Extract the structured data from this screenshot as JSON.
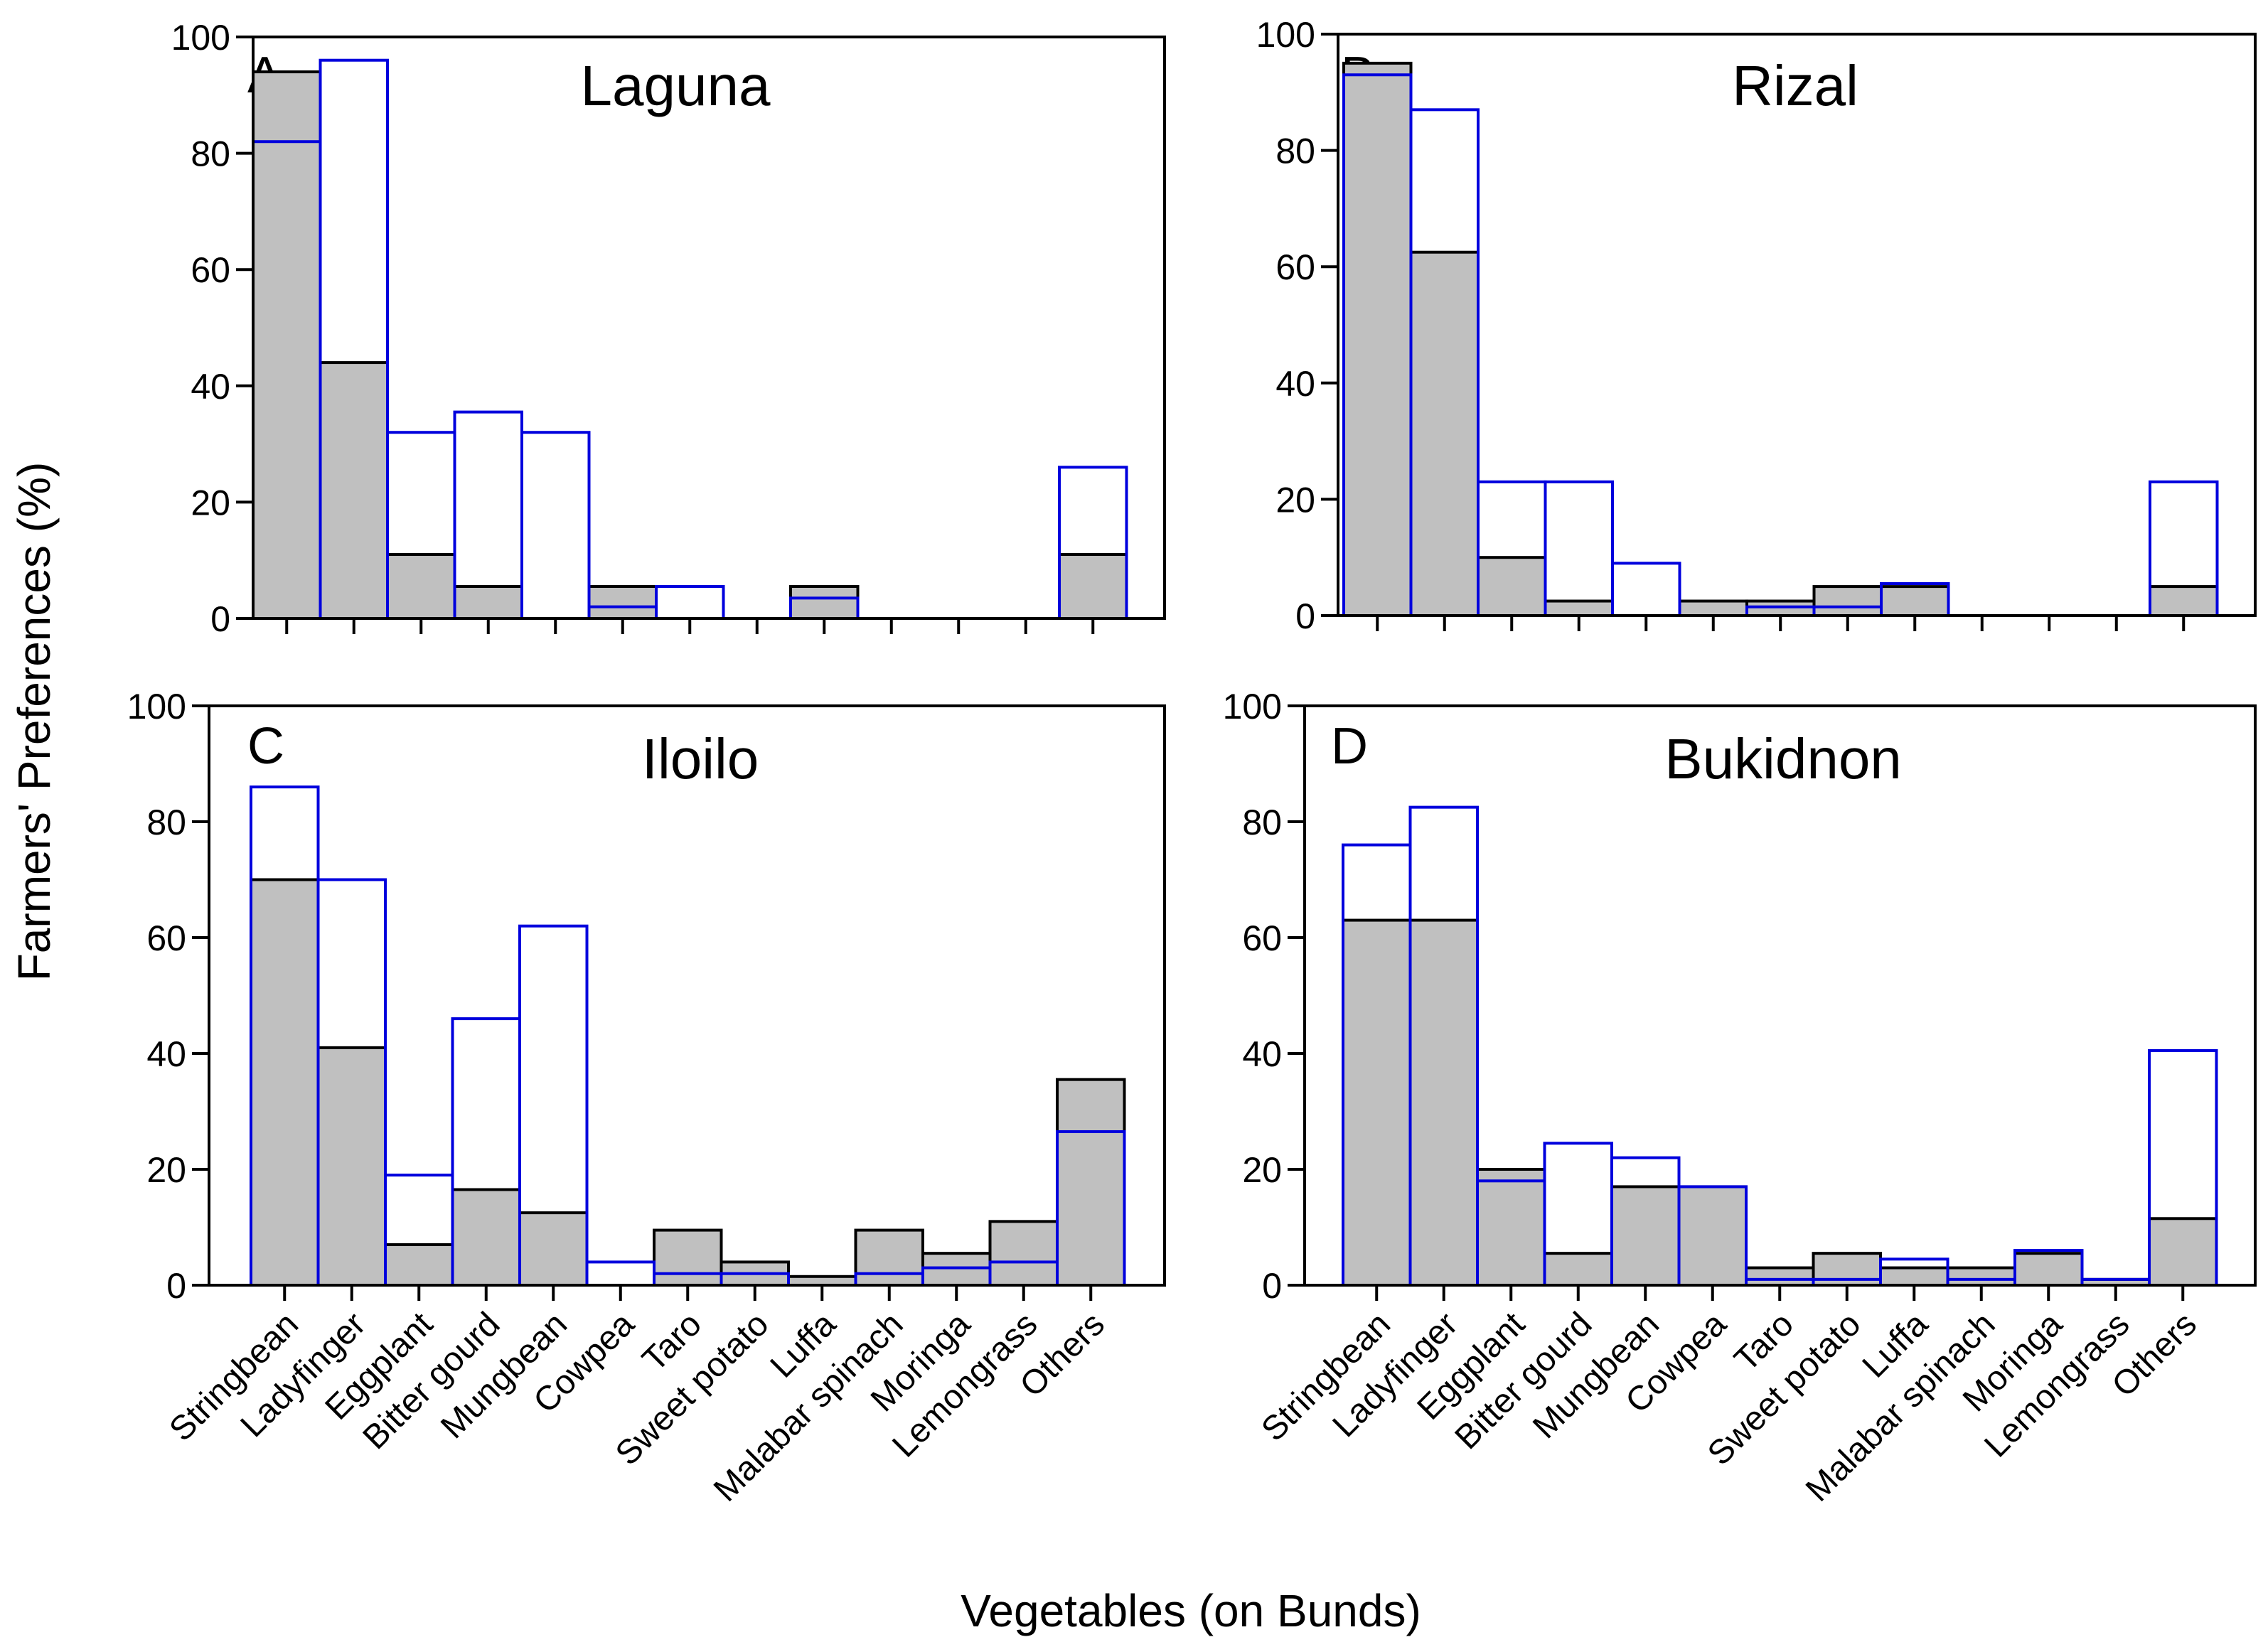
{
  "figure": {
    "ylabel": "Farmers' Preferences (%)",
    "xlabel": "Vegetables (on Bunds)"
  },
  "colors": {
    "gray_fill": "#c0c0c0",
    "gray_stroke": "#000000",
    "blue_stroke": "#0000dd",
    "axis": "#000000"
  },
  "chart_data": [
    {
      "type": "bar",
      "panel": "A",
      "title": "Laguna",
      "ylim": [
        0,
        100
      ],
      "yticks": [
        0,
        20,
        40,
        60,
        80,
        100
      ],
      "show_xtick_labels": false,
      "categories": [
        "Stringbean",
        "Ladyfinger",
        "Eggplant",
        "Bitter gourd",
        "Mungbean",
        "Cowpea",
        "Taro",
        "Sweet potato",
        "Luffa",
        "Malabar spinach",
        "Moringa",
        "Lemongrass",
        "Others"
      ],
      "series": [
        {
          "name": "gray",
          "style": "filled",
          "values": [
            94,
            44,
            11,
            5.5,
            0,
            5.5,
            0,
            0,
            5.5,
            0,
            0,
            0,
            11
          ]
        },
        {
          "name": "blue",
          "style": "outline",
          "values": [
            82,
            96,
            32,
            35.5,
            32,
            2,
            5.5,
            0,
            3.5,
            0,
            0,
            0,
            26
          ]
        }
      ]
    },
    {
      "type": "bar",
      "panel": "B",
      "title": "Rizal",
      "ylim": [
        0,
        100
      ],
      "yticks": [
        0,
        20,
        40,
        60,
        80,
        100
      ],
      "show_xtick_labels": false,
      "categories": [
        "Stringbean",
        "Ladyfinger",
        "Eggplant",
        "Bitter gourd",
        "Mungbean",
        "Cowpea",
        "Taro",
        "Sweet potato",
        "Luffa",
        "Malabar spinach",
        "Moringa",
        "Lemongrass",
        "Others"
      ],
      "series": [
        {
          "name": "gray",
          "style": "filled",
          "values": [
            95,
            62.5,
            10,
            2.5,
            0,
            2.5,
            2.5,
            5,
            5,
            0,
            0,
            0,
            5
          ]
        },
        {
          "name": "blue",
          "style": "outline",
          "values": [
            93,
            87,
            23,
            23,
            9,
            0,
            1.5,
            1.5,
            5.5,
            0,
            0,
            0,
            23
          ]
        }
      ]
    },
    {
      "type": "bar",
      "panel": "C",
      "title": "Iloilo",
      "ylim": [
        0,
        100
      ],
      "yticks": [
        0,
        20,
        40,
        60,
        80,
        100
      ],
      "show_xtick_labels": true,
      "categories": [
        "Stringbean",
        "Ladyfinger",
        "Eggplant",
        "Bitter gourd",
        "Mungbean",
        "Cowpea",
        "Taro",
        "Sweet potato",
        "Luffa",
        "Malabar spinach",
        "Moringa",
        "Lemongrass",
        "Others"
      ],
      "series": [
        {
          "name": "gray",
          "style": "filled",
          "values": [
            70,
            41,
            7,
            16.5,
            12.5,
            0,
            9.5,
            4,
            1.5,
            9.5,
            5.5,
            11,
            35.5
          ]
        },
        {
          "name": "blue",
          "style": "outline",
          "values": [
            86,
            70,
            19,
            46,
            62,
            4,
            2,
            2,
            0,
            2,
            3,
            4,
            26.5
          ]
        }
      ]
    },
    {
      "type": "bar",
      "panel": "D",
      "title": "Bukidnon",
      "ylim": [
        0,
        100
      ],
      "yticks": [
        0,
        20,
        40,
        60,
        80,
        100
      ],
      "show_xtick_labels": true,
      "categories": [
        "Stringbean",
        "Ladyfinger",
        "Eggplant",
        "Bitter gourd",
        "Mungbean",
        "Cowpea",
        "Taro",
        "Sweet potato",
        "Luffa",
        "Malabar spinach",
        "Moringa",
        "Lemongrass",
        "Others"
      ],
      "series": [
        {
          "name": "gray",
          "style": "filled",
          "values": [
            63,
            63,
            20,
            5.5,
            17,
            17,
            3,
            5.5,
            3,
            3,
            5.5,
            1,
            11.5
          ]
        },
        {
          "name": "blue",
          "style": "outline",
          "values": [
            76,
            82.5,
            18,
            24.5,
            22,
            17,
            1,
            1,
            4.5,
            1,
            6,
            1,
            40.5
          ]
        }
      ]
    }
  ]
}
